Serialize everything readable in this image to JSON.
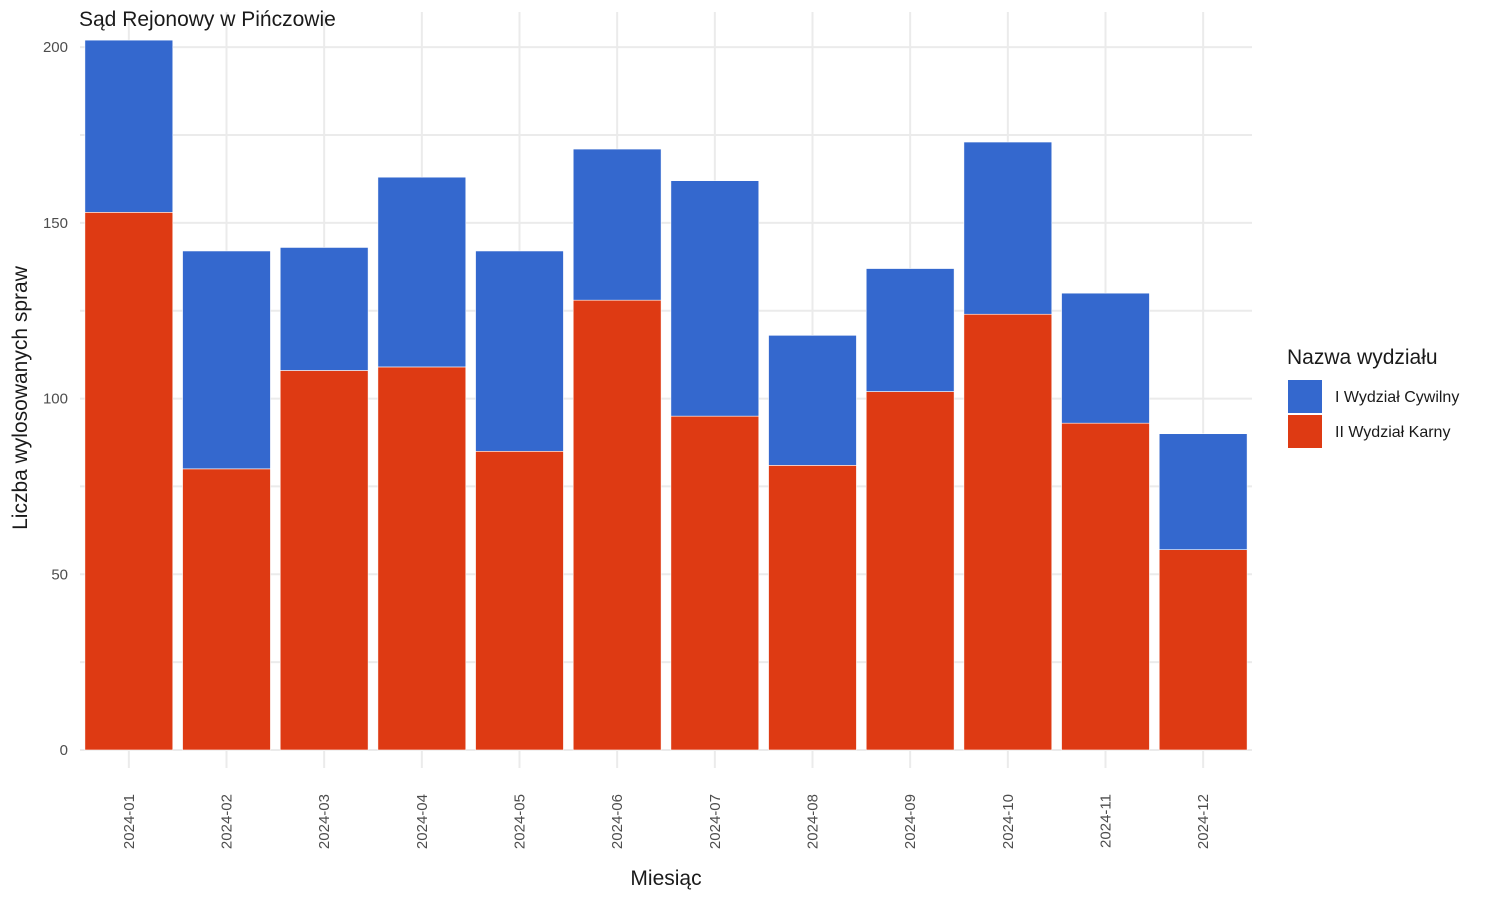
{
  "chart_data": {
    "type": "bar",
    "stacked": true,
    "title": "Sąd Rejonowy w Pińczowie",
    "xlabel": "Miesiąc",
    "ylabel": "Liczba wylosowanych spraw",
    "ylim": [
      0,
      210
    ],
    "yticks": [
      0,
      50,
      100,
      150,
      200
    ],
    "grid": true,
    "legend": {
      "title": "Nazwa wydziału",
      "position": "right"
    },
    "categories": [
      "2024-01",
      "2024-02",
      "2024-03",
      "2024-04",
      "2024-05",
      "2024-06",
      "2024-07",
      "2024-08",
      "2024-09",
      "2024-10",
      "2024-11",
      "2024-12"
    ],
    "series": [
      {
        "name": "II Wydział Karny",
        "color": "#de3a13",
        "values": [
          153,
          80,
          108,
          109,
          85,
          128,
          95,
          81,
          102,
          124,
          93,
          57
        ]
      },
      {
        "name": "I Wydział Cywilny",
        "color": "#3468ce",
        "values": [
          49,
          62,
          35,
          54,
          57,
          43,
          67,
          37,
          35,
          49,
          37,
          33
        ]
      }
    ],
    "legend_order": [
      "I Wydział Cywilny",
      "II Wydział Karny"
    ]
  }
}
